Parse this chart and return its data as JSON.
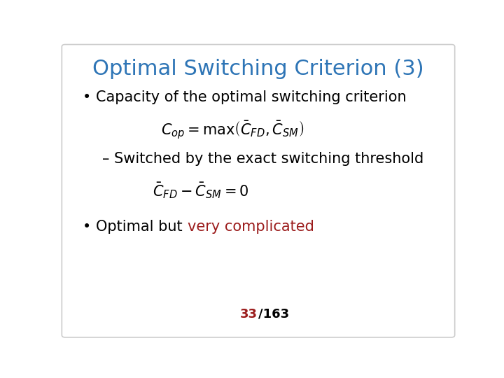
{
  "title": "Optimal Switching Criterion (3)",
  "title_color": "#2E75B6",
  "title_fontsize": 22,
  "background_color": "#ffffff",
  "bullet1_text": "Capacity of the optimal switching criterion",
  "bullet1_color": "#000000",
  "bullet1_fontsize": 15,
  "formula1": "$C_{op} = \\mathrm{max}\\left(\\bar{C}_{FD}, \\bar{C}_{SM}\\right)$",
  "formula1_color": "#000000",
  "formula1_fontsize": 15,
  "sub_bullet_text": "– Switched by the exact switching threshold",
  "sub_bullet_color": "#000000",
  "sub_bullet_fontsize": 15,
  "formula2": "$\\bar{C}_{FD} - \\bar{C}_{SM} = 0$",
  "formula2_color": "#000000",
  "formula2_fontsize": 15,
  "bullet2_prefix": "Optimal but ",
  "bullet2_colored": "very complicated",
  "bullet2_prefix_color": "#000000",
  "bullet2_colored_color": "#9B1B1B",
  "bullet2_fontsize": 15,
  "page_number": "33",
  "page_slash_total": "/163",
  "page_number_color": "#9B1B1B",
  "page_total_color": "#000000",
  "page_fontsize": 13,
  "border_color": "#cccccc"
}
